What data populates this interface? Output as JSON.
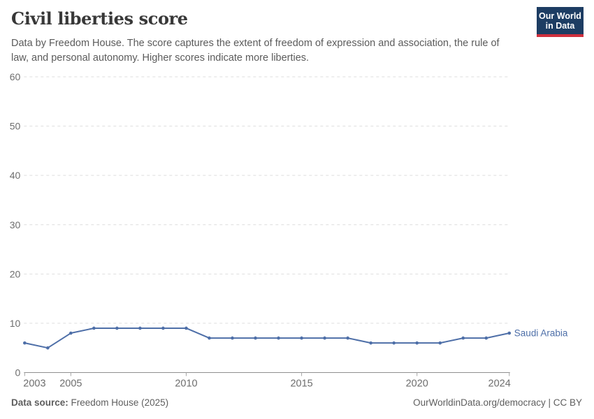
{
  "header": {
    "title": "Civil liberties score",
    "subtitle": "Data by Freedom House. The score captures the extent of freedom of expression and association, the rule of law, and personal autonomy. Higher scores indicate more liberties.",
    "logo": {
      "line1": "Our World",
      "line2": "in Data",
      "bg_color": "#1d3d63",
      "accent_color": "#cf303e"
    }
  },
  "chart_data": {
    "type": "line",
    "title": "Civil liberties score",
    "xlabel": "",
    "ylabel": "",
    "xlim": [
      2003,
      2024
    ],
    "ylim": [
      0,
      60
    ],
    "x_ticks": [
      2003,
      2005,
      2010,
      2015,
      2020,
      2024
    ],
    "y_ticks": [
      0,
      10,
      20,
      30,
      40,
      50,
      60
    ],
    "grid": "horizontal-dashed",
    "legend_position": "end-of-line",
    "series": [
      {
        "name": "Saudi Arabia",
        "color": "#4e6fa8",
        "x": [
          2003,
          2004,
          2005,
          2006,
          2007,
          2008,
          2009,
          2010,
          2011,
          2012,
          2013,
          2014,
          2015,
          2016,
          2017,
          2018,
          2019,
          2020,
          2021,
          2022,
          2023,
          2024
        ],
        "values": [
          6,
          5,
          8,
          9,
          9,
          9,
          9,
          9,
          7,
          7,
          7,
          7,
          7,
          7,
          7,
          6,
          6,
          6,
          6,
          7,
          7,
          8
        ]
      }
    ],
    "style": {
      "gridline_color": "#dedede",
      "axis_color": "#8f8f8f",
      "tick_label_color": "#6e6e6e"
    }
  },
  "footer": {
    "data_source_label": "Data source:",
    "data_source_value": " Freedom House (2025)",
    "credit": "OurWorldinData.org/democracy | CC BY"
  }
}
